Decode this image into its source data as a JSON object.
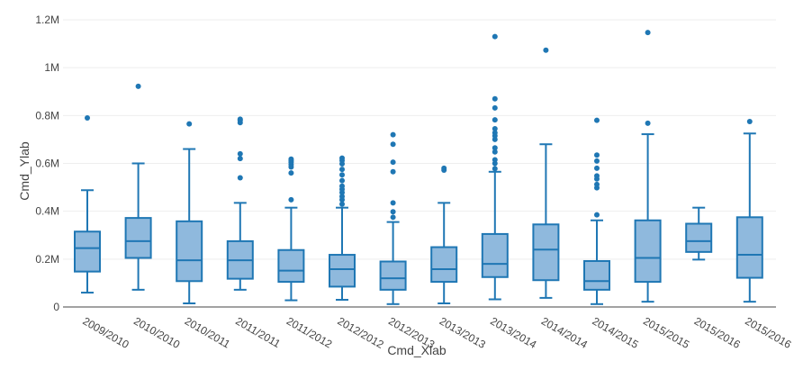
{
  "chart_data": {
    "type": "box",
    "ylabel": "Cmd_Ylab",
    "xlabel": "Cmd_Xlab",
    "ylim": [
      0,
      1200000
    ],
    "yticks": [
      {
        "value": 0,
        "label": "0"
      },
      {
        "value": 200000,
        "label": "0.2M"
      },
      {
        "value": 400000,
        "label": "0.4M"
      },
      {
        "value": 600000,
        "label": "0.6M"
      },
      {
        "value": 800000,
        "label": "0.8M"
      },
      {
        "value": 1000000,
        "label": "1M"
      },
      {
        "value": 1200000,
        "label": "1.2M"
      }
    ],
    "grid": true,
    "color": "#1f77b4",
    "fill_color": "#8fb9dd",
    "categories": [
      "2009/2010",
      "2010/2010",
      "2010/2011",
      "2011/2011",
      "2011/2012",
      "2012/2012",
      "2012/2013",
      "2013/2013",
      "2013/2014",
      "2014/2014",
      "2014/2015",
      "2015/2015",
      "2015/2016",
      "2015/2016"
    ],
    "boxes": [
      {
        "whisker_low": 60000,
        "q1": 148000,
        "median": 246000,
        "q3": 315000,
        "whisker_high": 488000,
        "outliers": [
          790000
        ]
      },
      {
        "whisker_low": 72000,
        "q1": 205000,
        "median": 275000,
        "q3": 372000,
        "whisker_high": 600000,
        "outliers": [
          922000
        ]
      },
      {
        "whisker_low": 15000,
        "q1": 108000,
        "median": 195000,
        "q3": 358000,
        "whisker_high": 660000,
        "outliers": [
          765000
        ]
      },
      {
        "whisker_low": 72000,
        "q1": 118000,
        "median": 195000,
        "q3": 275000,
        "whisker_high": 435000,
        "outliers": [
          540000,
          620000,
          640000,
          770000,
          780000,
          785000
        ]
      },
      {
        "whisker_low": 28000,
        "q1": 105000,
        "median": 152000,
        "q3": 238000,
        "whisker_high": 415000,
        "outliers": [
          448000,
          560000,
          585000,
          595000,
          605000,
          612000,
          618000
        ]
      },
      {
        "whisker_low": 30000,
        "q1": 85000,
        "median": 158000,
        "q3": 218000,
        "whisker_high": 415000,
        "outliers": [
          430000,
          448000,
          462000,
          478000,
          492000,
          505000,
          528000,
          552000,
          575000,
          598000,
          612000,
          622000
        ]
      },
      {
        "whisker_low": 12000,
        "q1": 72000,
        "median": 120000,
        "q3": 190000,
        "whisker_high": 355000,
        "outliers": [
          375000,
          398000,
          435000,
          565000,
          605000,
          680000,
          720000
        ]
      },
      {
        "whisker_low": 15000,
        "q1": 105000,
        "median": 158000,
        "q3": 250000,
        "whisker_high": 435000,
        "outliers": [
          572000,
          580000
        ]
      },
      {
        "whisker_low": 32000,
        "q1": 125000,
        "median": 180000,
        "q3": 305000,
        "whisker_high": 565000,
        "outliers": [
          578000,
          600000,
          615000,
          648000,
          665000,
          700000,
          715000,
          728000,
          745000,
          782000,
          832000,
          870000,
          1130000
        ]
      },
      {
        "whisker_low": 38000,
        "q1": 112000,
        "median": 240000,
        "q3": 345000,
        "whisker_high": 680000,
        "outliers": [
          1073000
        ]
      },
      {
        "whisker_low": 12000,
        "q1": 72000,
        "median": 108000,
        "q3": 192000,
        "whisker_high": 362000,
        "outliers": [
          385000,
          498000,
          512000,
          535000,
          548000,
          580000,
          610000,
          635000,
          780000
        ]
      },
      {
        "whisker_low": 22000,
        "q1": 105000,
        "median": 205000,
        "q3": 362000,
        "whisker_high": 722000,
        "outliers": [
          768000,
          1147000
        ]
      },
      {
        "whisker_low": 198000,
        "q1": 230000,
        "median": 275000,
        "q3": 348000,
        "whisker_high": 415000,
        "outliers": []
      },
      {
        "whisker_low": 22000,
        "q1": 122000,
        "median": 218000,
        "q3": 375000,
        "whisker_high": 725000,
        "outliers": [
          775000
        ]
      }
    ]
  }
}
